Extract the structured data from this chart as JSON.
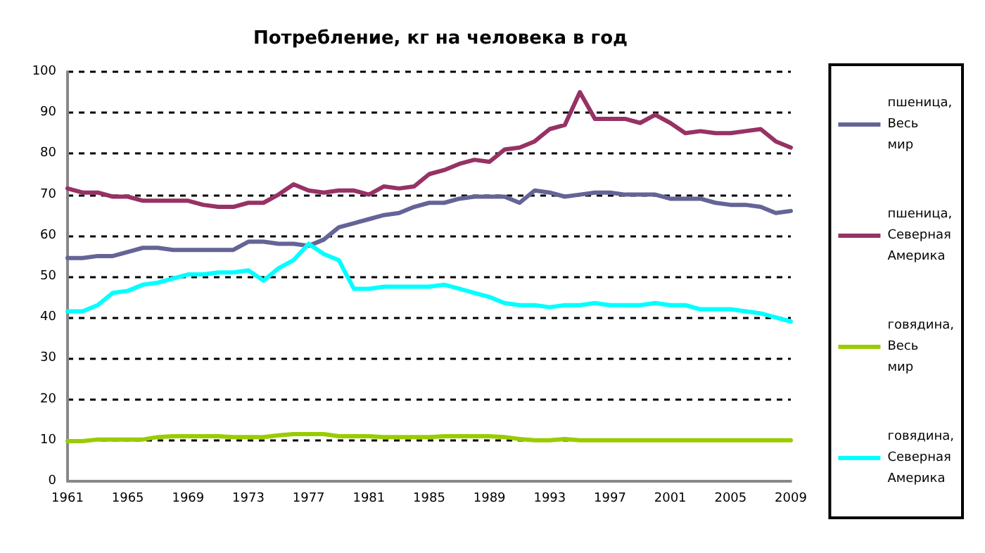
{
  "chart_data": {
    "type": "line",
    "title": "Потребление, кг на человека в год",
    "categories": [
      "1961",
      null,
      null,
      null,
      "1965",
      null,
      null,
      null,
      "1969",
      null,
      null,
      null,
      "1973",
      null,
      null,
      null,
      "1977",
      null,
      null,
      null,
      "1981",
      null,
      null,
      null,
      "1985",
      null,
      null,
      null,
      "1989",
      null,
      null,
      null,
      "1993",
      null,
      null,
      null,
      "1997",
      null,
      null,
      null,
      "2001",
      null,
      null,
      null,
      "2005",
      null,
      null,
      null,
      "2009"
    ],
    "ylim": [
      0,
      100
    ],
    "yticks": [
      0,
      10,
      20,
      30,
      40,
      50,
      60,
      70,
      80,
      90,
      100
    ],
    "grid": "y",
    "legend": "right",
    "marker": "none",
    "line_style": "solid",
    "series": [
      {
        "name": "пшеница, Весь мир",
        "color": "#646496",
        "values": [
          54.5,
          54.5,
          55,
          55,
          56,
          57,
          57,
          56.5,
          56.5,
          56.5,
          56.5,
          56.5,
          58.5,
          58.5,
          58,
          58,
          57.5,
          59,
          62,
          63,
          64,
          65,
          65.5,
          67,
          68,
          68,
          69,
          69.5,
          69.5,
          69.5,
          68,
          71,
          70.5,
          69.5,
          70,
          70.5,
          70.5,
          70,
          70,
          70,
          69,
          69,
          69,
          68,
          67.5,
          67.5,
          67,
          65.5,
          66
        ]
      },
      {
        "name": "пшеница, Северная Америка",
        "color": "#963264",
        "values": [
          71.5,
          70.5,
          70.5,
          69.5,
          69.5,
          68.5,
          68.5,
          68.5,
          68.5,
          67.5,
          67,
          67,
          68,
          68,
          70,
          72.5,
          71,
          70.5,
          71,
          71,
          70,
          72,
          71.5,
          72,
          75,
          76,
          77.5,
          78.5,
          78,
          81,
          81.5,
          83,
          86,
          87,
          95,
          88.5,
          88.5,
          88.5,
          87.5,
          89.5,
          87.5,
          85,
          85.5,
          85,
          85,
          85.5,
          86,
          83,
          81.5
        ]
      },
      {
        "name": "говядина, Весь мир",
        "color": "#99cc00",
        "values": [
          9.8,
          9.8,
          10.2,
          10.2,
          10.2,
          10.2,
          10.8,
          11,
          11,
          11,
          11,
          10.8,
          10.8,
          10.8,
          11.2,
          11.5,
          11.5,
          11.5,
          11,
          11,
          11,
          10.8,
          10.8,
          10.8,
          10.8,
          11,
          11,
          11,
          11,
          10.8,
          10.3,
          10,
          10,
          10.3,
          10,
          10,
          10,
          10,
          10,
          10,
          10,
          10,
          10,
          10,
          10,
          10,
          10,
          10,
          10
        ]
      },
      {
        "name": "говядина, Северная Америка",
        "color": "#00ffff",
        "values": [
          41.5,
          41.5,
          43,
          46,
          46.5,
          48,
          48.5,
          49.5,
          50.5,
          50.5,
          51,
          51,
          51.5,
          49,
          52,
          54,
          58,
          55.5,
          54,
          47,
          47,
          47.5,
          47.5,
          47.5,
          47.5,
          48,
          47,
          46,
          45,
          43.5,
          43,
          43,
          42.5,
          43,
          43,
          43.5,
          43,
          43,
          43,
          43.5,
          43,
          43,
          42,
          42,
          42,
          41.5,
          41,
          40,
          39
        ]
      }
    ]
  }
}
